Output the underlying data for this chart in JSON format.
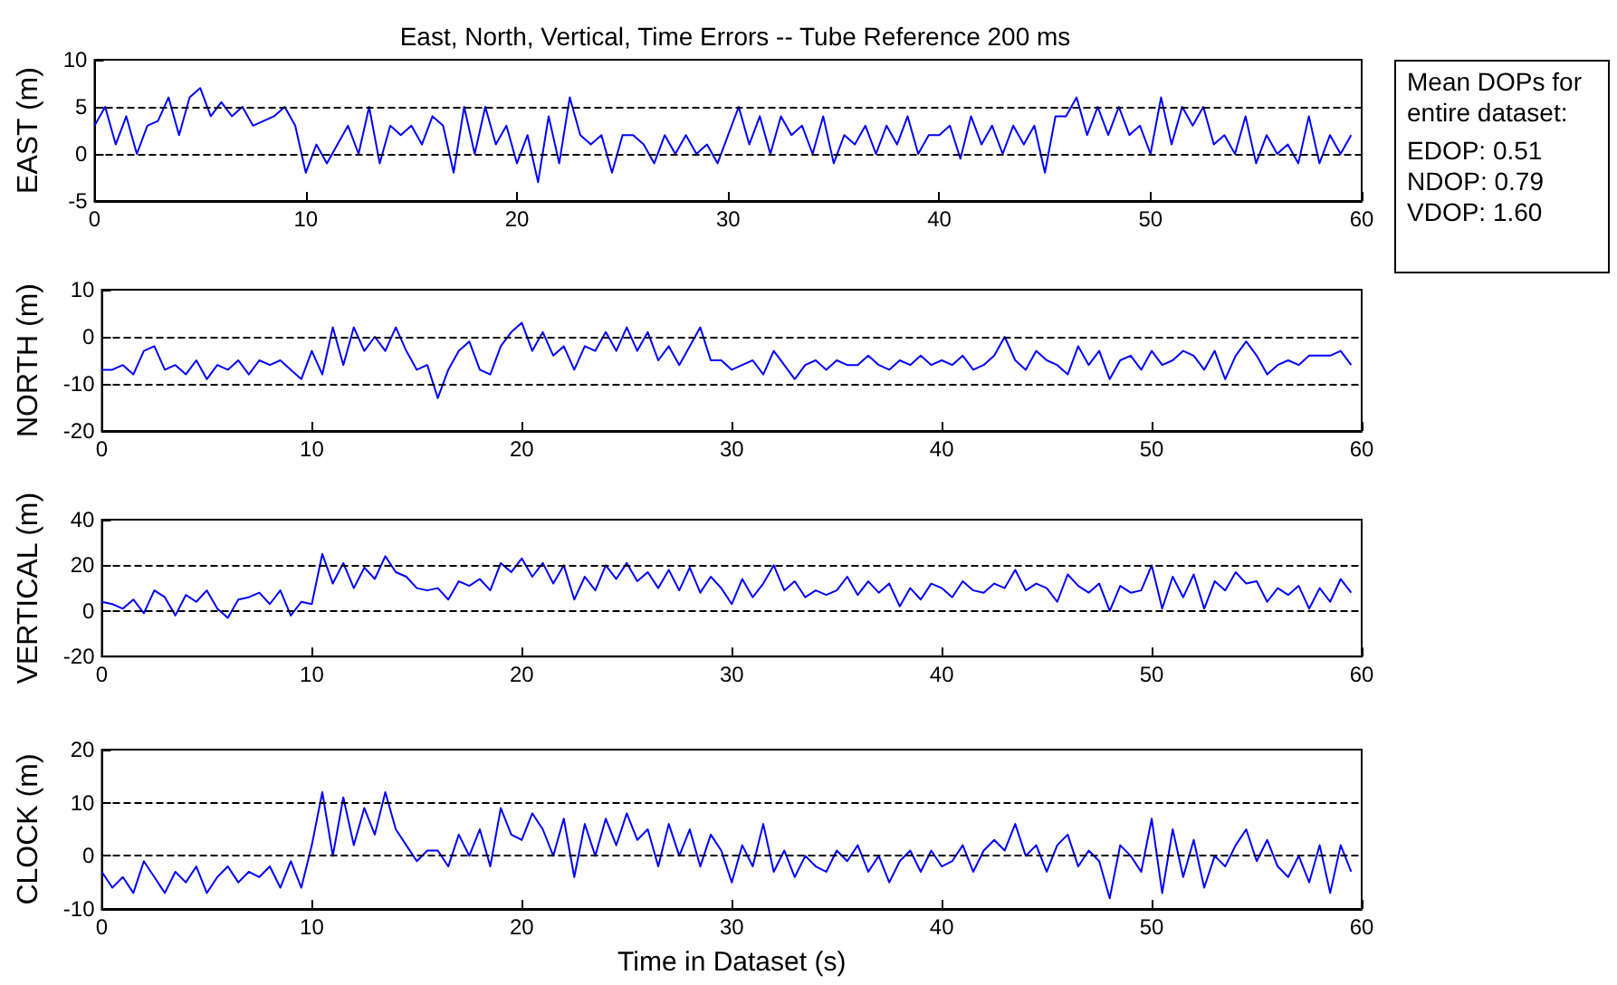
{
  "chart_data": [
    {
      "type": "line",
      "title": "East, North, Vertical, Time Errors -- Tube Reference 200 ms",
      "ylabel": "EAST (m)",
      "marker": "none",
      "line_style": "solid",
      "x": [
        0,
        0.5,
        1,
        1.5,
        2,
        2.5,
        3,
        3.5,
        4,
        4.5,
        5,
        5.5,
        6,
        6.5,
        7,
        7.5,
        8,
        8.5,
        9,
        9.5,
        10,
        10.5,
        11,
        11.5,
        12,
        12.5,
        13,
        13.5,
        14,
        14.5,
        15,
        15.5,
        16,
        16.5,
        17,
        17.5,
        18,
        18.5,
        19,
        19.5,
        20,
        20.5,
        21,
        21.5,
        22,
        22.5,
        23,
        23.5,
        24,
        24.5,
        25,
        25.5,
        26,
        26.5,
        27,
        27.5,
        28,
        28.5,
        29,
        29.5,
        30,
        30.5,
        31,
        31.5,
        32,
        32.5,
        33,
        33.5,
        34,
        34.5,
        35,
        35.5,
        36,
        36.5,
        37,
        37.5,
        38,
        38.5,
        39,
        39.5,
        40,
        40.5,
        41,
        41.5,
        42,
        42.5,
        43,
        43.5,
        44,
        44.5,
        45,
        45.5,
        46,
        46.5,
        47,
        47.5,
        48,
        48.5,
        49,
        49.5,
        50,
        50.5,
        51,
        51.5,
        52,
        52.5,
        53,
        53.5,
        54,
        54.5,
        55,
        55.5,
        56,
        56.5,
        57,
        57.5,
        58,
        58.5,
        59,
        59.5
      ],
      "series": [
        {
          "color": "#0000ff",
          "values": [
            3,
            5,
            1,
            4,
            0,
            3,
            3.5,
            6,
            2,
            6,
            7,
            4,
            5.5,
            4,
            5,
            3,
            3.5,
            4,
            5,
            3,
            -2,
            1,
            -1,
            1,
            3,
            0,
            5,
            -1,
            3,
            2,
            3,
            1,
            4,
            3,
            -2,
            5,
            0,
            5,
            1,
            3,
            -1,
            2,
            -3,
            4,
            -1,
            6,
            2,
            1,
            2,
            -2,
            2,
            2,
            1,
            -1,
            2,
            0,
            2,
            0,
            1,
            -1,
            2,
            5,
            1,
            4,
            0,
            4,
            2,
            3,
            0,
            4,
            -1,
            2,
            1,
            3,
            0,
            3,
            1,
            4,
            0,
            2,
            2,
            3,
            -0.5,
            4,
            1,
            3,
            0,
            3,
            1,
            3,
            -2,
            4,
            4,
            6,
            2,
            5,
            2,
            5,
            2,
            3,
            0,
            6,
            1,
            5,
            3,
            5,
            1,
            2,
            0,
            4,
            -1,
            2,
            0,
            1,
            -1,
            4,
            -1,
            2,
            0,
            2
          ]
        }
      ],
      "xlim": [
        0,
        60
      ],
      "xticks": [
        0,
        10,
        20,
        30,
        40,
        50,
        60
      ],
      "ylim": [
        -5,
        10
      ],
      "yticks": [
        -5,
        0,
        5,
        10
      ],
      "ref_lines": [
        {
          "axis": "y",
          "value": 0,
          "color": "#000000",
          "line_style": "dashed"
        },
        {
          "axis": "y",
          "value": 5,
          "color": "#000000",
          "line_style": "dashed"
        }
      ]
    },
    {
      "type": "line",
      "ylabel": "NORTH (m)",
      "marker": "none",
      "line_style": "solid",
      "x": [
        0,
        0.5,
        1,
        1.5,
        2,
        2.5,
        3,
        3.5,
        4,
        4.5,
        5,
        5.5,
        6,
        6.5,
        7,
        7.5,
        8,
        8.5,
        9,
        9.5,
        10,
        10.5,
        11,
        11.5,
        12,
        12.5,
        13,
        13.5,
        14,
        14.5,
        15,
        15.5,
        16,
        16.5,
        17,
        17.5,
        18,
        18.5,
        19,
        19.5,
        20,
        20.5,
        21,
        21.5,
        22,
        22.5,
        23,
        23.5,
        24,
        24.5,
        25,
        25.5,
        26,
        26.5,
        27,
        27.5,
        28,
        28.5,
        29,
        29.5,
        30,
        30.5,
        31,
        31.5,
        32,
        32.5,
        33,
        33.5,
        34,
        34.5,
        35,
        35.5,
        36,
        36.5,
        37,
        37.5,
        38,
        38.5,
        39,
        39.5,
        40,
        40.5,
        41,
        41.5,
        42,
        42.5,
        43,
        43.5,
        44,
        44.5,
        45,
        45.5,
        46,
        46.5,
        47,
        47.5,
        48,
        48.5,
        49,
        49.5,
        50,
        50.5,
        51,
        51.5,
        52,
        52.5,
        53,
        53.5,
        54,
        54.5,
        55,
        55.5,
        56,
        56.5,
        57,
        57.5,
        58,
        58.5,
        59,
        59.5
      ],
      "series": [
        {
          "color": "#0000ff",
          "values": [
            -7,
            -7,
            -6,
            -8,
            -3,
            -2,
            -7,
            -6,
            -8,
            -5,
            -9,
            -6,
            -7,
            -5,
            -8,
            -5,
            -6,
            -5,
            -7,
            -9,
            -3,
            -8,
            2,
            -6,
            2,
            -3,
            0,
            -3,
            2,
            -3,
            -7,
            -6,
            -13,
            -7,
            -3,
            -1,
            -7,
            -8,
            -2,
            1,
            3,
            -3,
            1,
            -4,
            -2,
            -7,
            -2,
            -3,
            1,
            -3,
            2,
            -3,
            1,
            -5,
            -2,
            -6,
            -2,
            2,
            -5,
            -5,
            -7,
            -6,
            -5,
            -8,
            -3,
            -6,
            -9,
            -6,
            -5,
            -7,
            -5,
            -6,
            -6,
            -4,
            -6,
            -7,
            -5,
            -6,
            -4,
            -6,
            -5,
            -6,
            -4,
            -7,
            -6,
            -4,
            0,
            -5,
            -7,
            -3,
            -5,
            -6,
            -8,
            -2,
            -6,
            -3,
            -9,
            -5,
            -4,
            -7,
            -3,
            -6,
            -5,
            -3,
            -4,
            -7,
            -3,
            -9,
            -4,
            -1,
            -4,
            -8,
            -6,
            -5,
            -6,
            -4,
            -4,
            -4,
            -3,
            -6
          ]
        }
      ],
      "xlim": [
        0,
        60
      ],
      "xticks": [
        0,
        10,
        20,
        30,
        40,
        50,
        60
      ],
      "ylim": [
        -20,
        10
      ],
      "yticks": [
        -20,
        -10,
        0,
        10
      ],
      "ref_lines": [
        {
          "axis": "y",
          "value": -10,
          "color": "#000000",
          "line_style": "dashed"
        },
        {
          "axis": "y",
          "value": 0,
          "color": "#000000",
          "line_style": "dashed"
        }
      ]
    },
    {
      "type": "line",
      "ylabel": "VERTICAL (m)",
      "marker": "none",
      "line_style": "solid",
      "x": [
        0,
        0.5,
        1,
        1.5,
        2,
        2.5,
        3,
        3.5,
        4,
        4.5,
        5,
        5.5,
        6,
        6.5,
        7,
        7.5,
        8,
        8.5,
        9,
        9.5,
        10,
        10.5,
        11,
        11.5,
        12,
        12.5,
        13,
        13.5,
        14,
        14.5,
        15,
        15.5,
        16,
        16.5,
        17,
        17.5,
        18,
        18.5,
        19,
        19.5,
        20,
        20.5,
        21,
        21.5,
        22,
        22.5,
        23,
        23.5,
        24,
        24.5,
        25,
        25.5,
        26,
        26.5,
        27,
        27.5,
        28,
        28.5,
        29,
        29.5,
        30,
        30.5,
        31,
        31.5,
        32,
        32.5,
        33,
        33.5,
        34,
        34.5,
        35,
        35.5,
        36,
        36.5,
        37,
        37.5,
        38,
        38.5,
        39,
        39.5,
        40,
        40.5,
        41,
        41.5,
        42,
        42.5,
        43,
        43.5,
        44,
        44.5,
        45,
        45.5,
        46,
        46.5,
        47,
        47.5,
        48,
        48.5,
        49,
        49.5,
        50,
        50.5,
        51,
        51.5,
        52,
        52.5,
        53,
        53.5,
        54,
        54.5,
        55,
        55.5,
        56,
        56.5,
        57,
        57.5,
        58,
        58.5,
        59,
        59.5
      ],
      "series": [
        {
          "color": "#0000ff",
          "values": [
            4,
            3,
            1,
            5,
            -1,
            9,
            6,
            -2,
            7,
            4,
            9,
            1,
            -3,
            5,
            6,
            8,
            3,
            9,
            -2,
            4,
            3,
            25,
            12,
            21,
            10,
            19,
            14,
            24,
            17,
            15,
            10,
            9,
            10,
            5,
            13,
            11,
            14,
            9,
            21,
            17,
            23,
            15,
            21,
            12,
            20,
            5,
            15,
            9,
            20,
            14,
            21,
            13,
            17,
            10,
            18,
            9,
            19,
            8,
            15,
            10,
            3,
            14,
            6,
            12,
            20,
            9,
            13,
            6,
            9,
            7,
            9,
            15,
            7,
            13,
            8,
            12,
            2,
            10,
            5,
            12,
            10,
            6,
            13,
            9,
            8,
            12,
            10,
            18,
            9,
            12,
            10,
            4,
            16,
            11,
            8,
            12,
            0,
            11,
            8,
            9,
            20,
            1,
            15,
            6,
            16,
            1,
            13,
            9,
            17,
            12,
            13,
            4,
            10,
            7,
            11,
            1,
            10,
            4,
            14,
            8
          ]
        }
      ],
      "xlim": [
        0,
        60
      ],
      "xticks": [
        0,
        10,
        20,
        30,
        40,
        50,
        60
      ],
      "ylim": [
        -20,
        40
      ],
      "yticks": [
        -20,
        0,
        20,
        40
      ],
      "ref_lines": [
        {
          "axis": "y",
          "value": 0,
          "color": "#000000",
          "line_style": "dashed"
        },
        {
          "axis": "y",
          "value": 20,
          "color": "#000000",
          "line_style": "dashed"
        }
      ]
    },
    {
      "type": "line",
      "ylabel": "CLOCK (m)",
      "xlabel": "Time in Dataset (s)",
      "marker": "none",
      "line_style": "solid",
      "x": [
        0,
        0.5,
        1,
        1.5,
        2,
        2.5,
        3,
        3.5,
        4,
        4.5,
        5,
        5.5,
        6,
        6.5,
        7,
        7.5,
        8,
        8.5,
        9,
        9.5,
        10,
        10.5,
        11,
        11.5,
        12,
        12.5,
        13,
        13.5,
        14,
        14.5,
        15,
        15.5,
        16,
        16.5,
        17,
        17.5,
        18,
        18.5,
        19,
        19.5,
        20,
        20.5,
        21,
        21.5,
        22,
        22.5,
        23,
        23.5,
        24,
        24.5,
        25,
        25.5,
        26,
        26.5,
        27,
        27.5,
        28,
        28.5,
        29,
        29.5,
        30,
        30.5,
        31,
        31.5,
        32,
        32.5,
        33,
        33.5,
        34,
        34.5,
        35,
        35.5,
        36,
        36.5,
        37,
        37.5,
        38,
        38.5,
        39,
        39.5,
        40,
        40.5,
        41,
        41.5,
        42,
        42.5,
        43,
        43.5,
        44,
        44.5,
        45,
        45.5,
        46,
        46.5,
        47,
        47.5,
        48,
        48.5,
        49,
        49.5,
        50,
        50.5,
        51,
        51.5,
        52,
        52.5,
        53,
        53.5,
        54,
        54.5,
        55,
        55.5,
        56,
        56.5,
        57,
        57.5,
        58,
        58.5,
        59,
        59.5
      ],
      "series": [
        {
          "color": "#0000ff",
          "values": [
            -3,
            -6,
            -4,
            -7,
            -1,
            -4,
            -7,
            -3,
            -5,
            -2,
            -7,
            -4,
            -2,
            -5,
            -3,
            -4,
            -2,
            -6,
            -1,
            -6,
            2,
            12,
            0,
            11,
            2,
            9,
            4,
            12,
            5,
            2,
            -1,
            1,
            1,
            -2,
            4,
            0,
            5,
            -2,
            9,
            4,
            3,
            8,
            5,
            0,
            7,
            -4,
            6,
            0,
            7,
            2,
            8,
            3,
            5,
            -2,
            6,
            0,
            5,
            -2,
            4,
            1,
            -5,
            2,
            -2,
            6,
            -3,
            1,
            -4,
            0,
            -2,
            -3,
            1,
            -1,
            2,
            -3,
            0,
            -5,
            -1,
            1,
            -3,
            1,
            -2,
            -1,
            2,
            -3,
            1,
            3,
            1,
            6,
            0,
            2,
            -3,
            2,
            4,
            -2,
            1,
            -1,
            -8,
            2,
            0,
            -3,
            7,
            -7,
            5,
            -4,
            3,
            -6,
            0,
            -2,
            2,
            5,
            -1,
            3,
            -2,
            -4,
            0,
            -5,
            2,
            -7,
            2,
            -3
          ]
        }
      ],
      "xlim": [
        0,
        60
      ],
      "xticks": [
        0,
        10,
        20,
        30,
        40,
        50,
        60
      ],
      "ylim": [
        -10,
        20
      ],
      "yticks": [
        -10,
        0,
        10,
        20
      ],
      "ref_lines": [
        {
          "axis": "y",
          "value": 0,
          "color": "#000000",
          "line_style": "dashed"
        },
        {
          "axis": "y",
          "value": 10,
          "color": "#000000",
          "line_style": "dashed"
        }
      ]
    },
    {
      "type": "other",
      "title": "Mean DOPs for entire dataset:",
      "annotations": [
        "EDOP: 0.51",
        "NDOP: 0.79",
        "VDOP: 1.60"
      ]
    }
  ]
}
